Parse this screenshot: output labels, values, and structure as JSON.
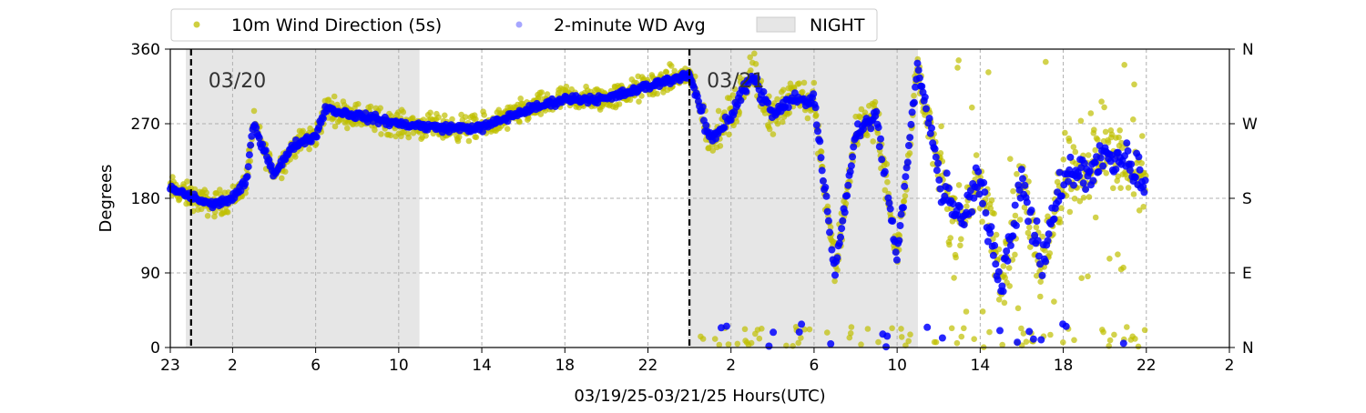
{
  "chart_data": {
    "type": "scatter",
    "xlabel": "03/19/25-03/21/25  Hours(UTC)",
    "ylabel": "Degrees",
    "x_range": [
      "2025-03-19T23:00",
      "2025-03-22T02:00"
    ],
    "ylim": [
      0,
      360
    ],
    "x_ticks": [
      {
        "t": "2025-03-19T23:00",
        "label": "23"
      },
      {
        "t": "2025-03-20T02:00",
        "label": "2"
      },
      {
        "t": "2025-03-20T06:00",
        "label": "6"
      },
      {
        "t": "2025-03-20T10:00",
        "label": "10"
      },
      {
        "t": "2025-03-20T14:00",
        "label": "14"
      },
      {
        "t": "2025-03-20T18:00",
        "label": "18"
      },
      {
        "t": "2025-03-20T22:00",
        "label": "22"
      },
      {
        "t": "2025-03-21T02:00",
        "label": "2"
      },
      {
        "t": "2025-03-21T06:00",
        "label": "6"
      },
      {
        "t": "2025-03-21T10:00",
        "label": "10"
      },
      {
        "t": "2025-03-21T14:00",
        "label": "14"
      },
      {
        "t": "2025-03-21T18:00",
        "label": "18"
      },
      {
        "t": "2025-03-21T22:00",
        "label": "22"
      },
      {
        "t": "2025-03-22T02:00",
        "label": "2"
      }
    ],
    "y_ticks": [
      0,
      90,
      180,
      270,
      360
    ],
    "y2_ticks": [
      {
        "value": 0,
        "label": "N"
      },
      {
        "value": 90,
        "label": "E"
      },
      {
        "value": 180,
        "label": "S"
      },
      {
        "value": 270,
        "label": "W"
      },
      {
        "value": 360,
        "label": "N"
      }
    ],
    "grid": true,
    "legend": {
      "placement": "top-left",
      "entries": [
        {
          "name": "10m Wind Direction (5s)",
          "color": "#bfbf00",
          "marker": "circle"
        },
        {
          "name": "2-minute WD Avg",
          "color": "#0000ff",
          "marker": "circle"
        },
        {
          "name": "NIGHT",
          "color": "#e6e6e6",
          "marker": "rect"
        }
      ]
    },
    "night_periods": [
      [
        "2025-03-19T23:45",
        "2025-03-20T11:00"
      ],
      [
        "2025-03-20T23:55",
        "2025-03-21T11:00"
      ]
    ],
    "day_markers": [
      {
        "t": "2025-03-20T00:00",
        "label": "03/20"
      },
      {
        "t": "2025-03-21T00:00",
        "label": "03/21"
      }
    ],
    "series": [
      {
        "name": "2-minute WD Avg",
        "color": "#0000ff",
        "points": [
          [
            "2025-03-19T23:00",
            192
          ],
          [
            "2025-03-20T00:00",
            182
          ],
          [
            "2025-03-20T01:00",
            172
          ],
          [
            "2025-03-20T02:00",
            180
          ],
          [
            "2025-03-20T02:40",
            200
          ],
          [
            "2025-03-20T03:00",
            270
          ],
          [
            "2025-03-20T03:30",
            240
          ],
          [
            "2025-03-20T04:00",
            210
          ],
          [
            "2025-03-20T05:00",
            245
          ],
          [
            "2025-03-20T06:00",
            255
          ],
          [
            "2025-03-20T06:30",
            290
          ],
          [
            "2025-03-20T07:00",
            285
          ],
          [
            "2025-03-20T08:00",
            280
          ],
          [
            "2025-03-20T10:00",
            270
          ],
          [
            "2025-03-20T12:00",
            265
          ],
          [
            "2025-03-20T14:00",
            265
          ],
          [
            "2025-03-20T16:00",
            285
          ],
          [
            "2025-03-20T18:00",
            300
          ],
          [
            "2025-03-20T20:00",
            300
          ],
          [
            "2025-03-20T22:00",
            315
          ],
          [
            "2025-03-21T00:00",
            330
          ],
          [
            "2025-03-21T01:00",
            250
          ],
          [
            "2025-03-21T02:00",
            280
          ],
          [
            "2025-03-21T03:00",
            330
          ],
          [
            "2025-03-21T04:00",
            280
          ],
          [
            "2025-03-21T05:00",
            300
          ],
          [
            "2025-03-21T06:00",
            300
          ],
          [
            "2025-03-21T07:00",
            90
          ],
          [
            "2025-03-21T08:00",
            260
          ],
          [
            "2025-03-21T09:00",
            280
          ],
          [
            "2025-03-21T10:00",
            110
          ],
          [
            "2025-03-21T11:00",
            340
          ],
          [
            "2025-03-21T12:00",
            210
          ],
          [
            "2025-03-21T13:00",
            150
          ],
          [
            "2025-03-21T14:00",
            200
          ],
          [
            "2025-03-21T15:00",
            80
          ],
          [
            "2025-03-21T16:00",
            200
          ],
          [
            "2025-03-21T17:00",
            100
          ],
          [
            "2025-03-21T18:00",
            210
          ],
          [
            "2025-03-21T19:00",
            210
          ],
          [
            "2025-03-21T20:00",
            230
          ],
          [
            "2025-03-21T21:00",
            230
          ],
          [
            "2025-03-21T22:00",
            195
          ]
        ]
      }
    ]
  }
}
